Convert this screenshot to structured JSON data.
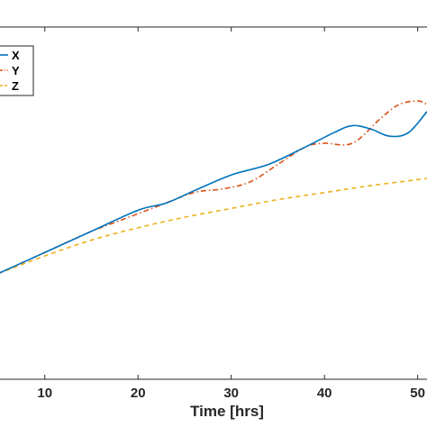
{
  "chart_data": {
    "type": "line",
    "xlabel": "Time [hrs]",
    "x_ticks": [
      "10",
      "20",
      "30",
      "40",
      "50"
    ],
    "xlim": [
      5,
      51
    ],
    "ylim": [
      0,
      1
    ],
    "grid": false,
    "legend_position": "top-left",
    "series": [
      {
        "name": "X",
        "color": "#0072bd",
        "style": "solid",
        "points": [
          [
            5,
            0.3
          ],
          [
            10,
            0.36
          ],
          [
            15,
            0.42
          ],
          [
            20,
            0.48
          ],
          [
            23,
            0.5
          ],
          [
            26,
            0.535
          ],
          [
            30,
            0.58
          ],
          [
            34,
            0.61
          ],
          [
            38,
            0.66
          ],
          [
            41,
            0.7
          ],
          [
            43,
            0.72
          ],
          [
            45,
            0.71
          ],
          [
            47,
            0.69
          ],
          [
            49,
            0.7
          ],
          [
            51,
            0.76
          ]
        ]
      },
      {
        "name": "Y",
        "color": "#d95319",
        "style": "dashdot",
        "points": [
          [
            5,
            0.3
          ],
          [
            10,
            0.36
          ],
          [
            15,
            0.42
          ],
          [
            18,
            0.45
          ],
          [
            22,
            0.49
          ],
          [
            26,
            0.53
          ],
          [
            29,
            0.54
          ],
          [
            32,
            0.56
          ],
          [
            35,
            0.61
          ],
          [
            38,
            0.66
          ],
          [
            40,
            0.67
          ],
          [
            43,
            0.67
          ],
          [
            46,
            0.74
          ],
          [
            48,
            0.78
          ],
          [
            50,
            0.79
          ],
          [
            51,
            0.78
          ]
        ]
      },
      {
        "name": "Z",
        "color": "#edb120",
        "style": "dashed",
        "points": [
          [
            5,
            0.3
          ],
          [
            10,
            0.35
          ],
          [
            15,
            0.395
          ],
          [
            20,
            0.43
          ],
          [
            25,
            0.46
          ],
          [
            30,
            0.485
          ],
          [
            35,
            0.51
          ],
          [
            40,
            0.53
          ],
          [
            45,
            0.55
          ],
          [
            51,
            0.57
          ]
        ]
      }
    ]
  }
}
